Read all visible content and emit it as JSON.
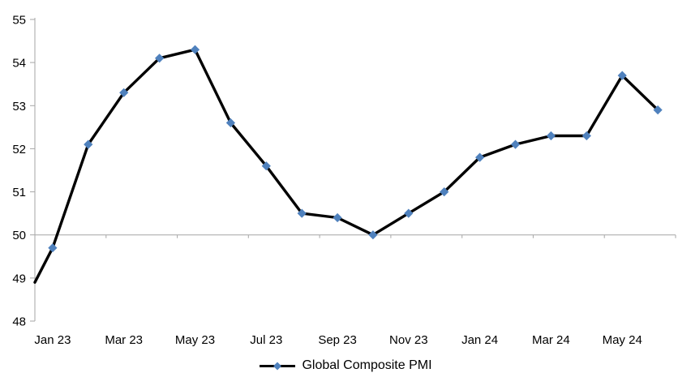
{
  "chart_data": {
    "type": "line",
    "title": "",
    "legend": {
      "label": "Global Composite PMI",
      "position": "bottom-center",
      "marker": "diamond"
    },
    "categories": [
      "Jan 23",
      "Feb 23",
      "Mar 23",
      "Apr 23",
      "May 23",
      "Jun 23",
      "Jul 23",
      "Aug 23",
      "Sep 23",
      "Oct 23",
      "Nov 23",
      "Dec 23",
      "Jan 24",
      "Feb 24",
      "Mar 24",
      "Apr 24",
      "May 24",
      "Jun 24"
    ],
    "values": [
      49.7,
      52.1,
      53.3,
      54.1,
      54.3,
      52.6,
      51.6,
      50.5,
      50.4,
      50.0,
      50.5,
      51.0,
      51.8,
      52.1,
      52.3,
      52.3,
      53.7,
      52.9
    ],
    "edge_start_value": 48.9,
    "x_tick_labels": [
      "Jan 23",
      "Mar 23",
      "May 23",
      "Jul 23",
      "Sep 23",
      "Nov 23",
      "Jan 24",
      "Mar 24",
      "May 24"
    ],
    "x_label_interval": 2,
    "y_ticks": [
      55,
      54,
      53,
      52,
      51,
      50,
      49,
      48
    ],
    "ylim": [
      48,
      55
    ],
    "category_axis_crosses_at": 50,
    "grid": false,
    "colors": {
      "line": "#000000",
      "marker": "#4F81BD",
      "axis": "#A6A6A6",
      "text": "#000000"
    }
  }
}
